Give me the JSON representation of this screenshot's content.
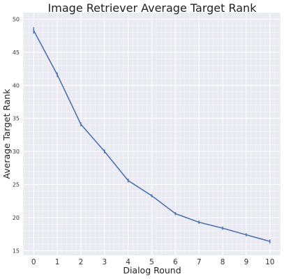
{
  "chart_data": {
    "type": "line",
    "title": "Image Retriever Average Target Rank",
    "xlabel": "Dialog Round",
    "ylabel": "Average Target Rank",
    "x": [
      0,
      1,
      2,
      3,
      4,
      5,
      6,
      7,
      8,
      9,
      10
    ],
    "series": [
      {
        "values": [
          48.3,
          41.6,
          34.1,
          30.0,
          25.6,
          23.3,
          20.6,
          19.3,
          18.4,
          17.4,
          16.4
        ],
        "error": [
          0.5,
          0.35,
          0.3,
          0.3,
          0.3,
          0.25,
          0.25,
          0.25,
          0.25,
          0.25,
          0.3
        ],
        "color": "#4c72b0"
      }
    ],
    "xticks": [
      "0",
      "1",
      "2",
      "3",
      "4",
      "5",
      "6",
      "7",
      "8",
      "9",
      "10"
    ],
    "yticks": [
      "15",
      "20",
      "25",
      "30",
      "35",
      "40",
      "45",
      "50"
    ],
    "ylim": [
      14.3,
      51.0
    ],
    "xlim": [
      -0.45,
      10.45
    ],
    "grid": true,
    "minor_grid": true,
    "background": "#eaeaf2"
  }
}
